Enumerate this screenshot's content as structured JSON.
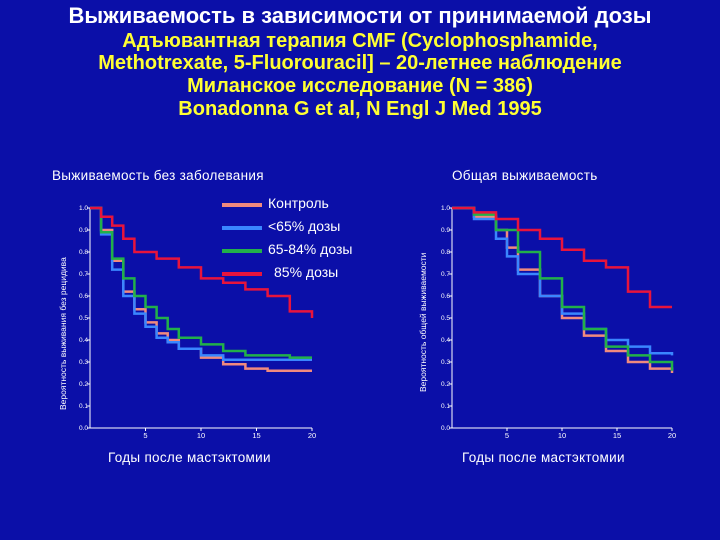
{
  "slide": {
    "title": "Выживаемость в зависимости от принимаемой дозы",
    "subtitle_lines": [
      "Адъювантная терапия CMF (Cyclophosphamide,",
      "Methotrexate, 5-Fluorouracil] – 20-летнее наблюдение",
      "Миланское исследование (N = 386)",
      "Bonadonna G et al, N Engl J Med 1995"
    ]
  },
  "colors": {
    "background": "#0b0fa8",
    "title": "#ffffff",
    "subtitle": "#ffff33",
    "series": [
      "#f08a7e",
      "#3a86ff",
      "#22b04a",
      "#e8143c"
    ]
  },
  "chart_data": [
    {
      "type": "line",
      "title": "Выживаемость без заболевания",
      "xlabel": "Годы после мастэктомии",
      "ylabel": "Вероятность выживания без рецидива",
      "xlim": [
        0,
        20
      ],
      "ylim": [
        0.0,
        1.0
      ],
      "x_ticks": [
        "5",
        "10",
        "15",
        "20"
      ],
      "y_ticks": [
        "0.0",
        "0.1",
        "0.2",
        "0.3",
        "0.4",
        "0.5",
        "0.6",
        "0.7",
        "0.8",
        "0.9",
        "1.0"
      ],
      "series": [
        {
          "name": "Контроль",
          "color": "#f08a7e",
          "points": [
            [
              0,
              1.0
            ],
            [
              1,
              0.9
            ],
            [
              2,
              0.76
            ],
            [
              3,
              0.62
            ],
            [
              4,
              0.54
            ],
            [
              5,
              0.48
            ],
            [
              6,
              0.43
            ],
            [
              7,
              0.4
            ],
            [
              8,
              0.36
            ],
            [
              10,
              0.32
            ],
            [
              12,
              0.29
            ],
            [
              14,
              0.27
            ],
            [
              16,
              0.26
            ],
            [
              18,
              0.26
            ],
            [
              20,
              0.26
            ]
          ]
        },
        {
          "name": "<65% дозы",
          "color": "#3a86ff",
          "points": [
            [
              0,
              1.0
            ],
            [
              1,
              0.88
            ],
            [
              2,
              0.72
            ],
            [
              3,
              0.6
            ],
            [
              4,
              0.52
            ],
            [
              5,
              0.46
            ],
            [
              6,
              0.41
            ],
            [
              7,
              0.39
            ],
            [
              8,
              0.36
            ],
            [
              10,
              0.33
            ],
            [
              12,
              0.31
            ],
            [
              14,
              0.31
            ],
            [
              16,
              0.31
            ],
            [
              18,
              0.31
            ],
            [
              20,
              0.31
            ]
          ]
        },
        {
          "name": "65-84% дозы",
          "color": "#22b04a",
          "points": [
            [
              0,
              1.0
            ],
            [
              1,
              0.89
            ],
            [
              2,
              0.77
            ],
            [
              3,
              0.68
            ],
            [
              4,
              0.6
            ],
            [
              5,
              0.55
            ],
            [
              6,
              0.5
            ],
            [
              7,
              0.45
            ],
            [
              8,
              0.41
            ],
            [
              10,
              0.38
            ],
            [
              12,
              0.35
            ],
            [
              14,
              0.33
            ],
            [
              16,
              0.33
            ],
            [
              18,
              0.32
            ],
            [
              20,
              0.32
            ]
          ]
        },
        {
          "name": "85% дозы",
          "color": "#e8143c",
          "points": [
            [
              0,
              1.0
            ],
            [
              1,
              0.96
            ],
            [
              2,
              0.92
            ],
            [
              3,
              0.86
            ],
            [
              4,
              0.8
            ],
            [
              6,
              0.77
            ],
            [
              8,
              0.73
            ],
            [
              10,
              0.68
            ],
            [
              12,
              0.66
            ],
            [
              14,
              0.63
            ],
            [
              16,
              0.6
            ],
            [
              18,
              0.53
            ],
            [
              20,
              0.5
            ]
          ]
        }
      ]
    },
    {
      "type": "line",
      "title": "Общая выживаемость",
      "xlabel": "Годы после мастэктомии",
      "ylabel": "Вероятность общей выживаемости",
      "xlim": [
        0,
        20
      ],
      "ylim": [
        0.0,
        1.0
      ],
      "x_ticks": [
        "5",
        "10",
        "15",
        "20"
      ],
      "y_ticks": [
        "0.0",
        "0.1",
        "0.2",
        "0.3",
        "0.4",
        "0.5",
        "0.6",
        "0.7",
        "0.8",
        "0.9",
        "1.0"
      ],
      "series": [
        {
          "name": "Контроль",
          "color": "#f08a7e",
          "points": [
            [
              0,
              1.0
            ],
            [
              2,
              0.96
            ],
            [
              4,
              0.9
            ],
            [
              5,
              0.82
            ],
            [
              6,
              0.72
            ],
            [
              8,
              0.6
            ],
            [
              10,
              0.5
            ],
            [
              12,
              0.42
            ],
            [
              14,
              0.35
            ],
            [
              16,
              0.3
            ],
            [
              18,
              0.27
            ],
            [
              20,
              0.25
            ]
          ]
        },
        {
          "name": "<65% дозы",
          "color": "#3a86ff",
          "points": [
            [
              0,
              1.0
            ],
            [
              2,
              0.95
            ],
            [
              4,
              0.86
            ],
            [
              5,
              0.78
            ],
            [
              6,
              0.7
            ],
            [
              8,
              0.6
            ],
            [
              10,
              0.52
            ],
            [
              12,
              0.45
            ],
            [
              14,
              0.4
            ],
            [
              16,
              0.37
            ],
            [
              18,
              0.34
            ],
            [
              20,
              0.33
            ]
          ]
        },
        {
          "name": "65-84% дозы",
          "color": "#22b04a",
          "points": [
            [
              0,
              1.0
            ],
            [
              2,
              0.97
            ],
            [
              4,
              0.9
            ],
            [
              6,
              0.8
            ],
            [
              8,
              0.68
            ],
            [
              10,
              0.55
            ],
            [
              12,
              0.45
            ],
            [
              14,
              0.37
            ],
            [
              16,
              0.33
            ],
            [
              18,
              0.3
            ],
            [
              20,
              0.26
            ]
          ]
        },
        {
          "name": "85% дозы",
          "color": "#e8143c",
          "points": [
            [
              0,
              1.0
            ],
            [
              2,
              0.98
            ],
            [
              4,
              0.95
            ],
            [
              6,
              0.9
            ],
            [
              8,
              0.86
            ],
            [
              10,
              0.81
            ],
            [
              12,
              0.76
            ],
            [
              14,
              0.73
            ],
            [
              16,
              0.62
            ],
            [
              18,
              0.55
            ],
            [
              20,
              0.55
            ]
          ]
        }
      ]
    }
  ],
  "legend": [
    "Контроль",
    "<65% дозы",
    "65-84% дозы",
    "85% дозы"
  ]
}
